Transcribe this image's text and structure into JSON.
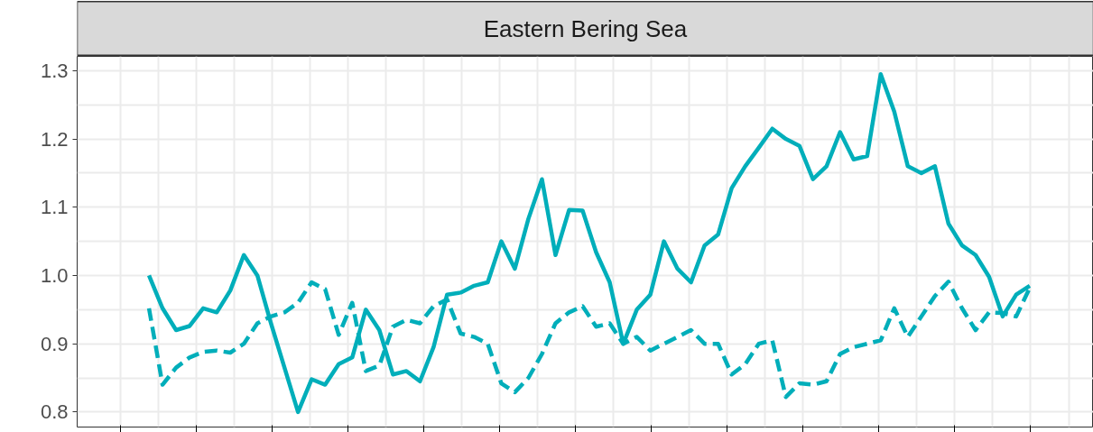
{
  "chart_data": {
    "type": "line",
    "title": "Eastern Bering Sea",
    "categories": [
      null,
      null,
      null,
      null,
      null,
      null,
      null,
      null,
      null,
      null,
      null,
      null,
      null,
      null,
      null,
      null,
      null,
      null,
      null,
      null,
      null,
      null,
      null,
      null,
      null,
      null,
      null,
      null,
      null,
      null,
      null,
      null,
      null,
      null,
      null,
      null,
      null,
      null,
      null,
      null,
      null,
      null,
      null,
      null,
      null,
      null,
      null,
      null,
      null,
      null,
      null,
      null,
      null,
      null,
      null,
      null,
      null,
      null,
      null,
      null,
      null,
      null,
      null,
      null,
      null,
      null
    ],
    "series": [
      {
        "color": "#00aeba",
        "line_style": "solid",
        "values": [
          1.0,
          0.952,
          0.92,
          0.926,
          0.952,
          0.946,
          0.978,
          1.03,
          1.0,
          0.93,
          0.865,
          0.8,
          0.848,
          0.84,
          0.87,
          0.88,
          0.95,
          0.92,
          0.855,
          0.86,
          0.845,
          0.895,
          0.972,
          0.975,
          0.985,
          0.99,
          1.05,
          1.01,
          1.083,
          1.141,
          1.03,
          1.096,
          1.095,
          1.034,
          0.99,
          0.9,
          0.95,
          0.972,
          1.05,
          1.01,
          0.99,
          1.044,
          1.06,
          1.128,
          1.16,
          1.187,
          1.215,
          1.2,
          1.19,
          1.141,
          1.16,
          1.21,
          1.17,
          1.175,
          1.295,
          1.24,
          1.16,
          1.15,
          1.16,
          1.076,
          1.044,
          1.03,
          0.998,
          0.94,
          0.972,
          0.985
        ]
      },
      {
        "color": "#00aeba",
        "line_style": "dashed",
        "values": [
          0.952,
          0.84,
          0.865,
          0.88,
          0.888,
          0.89,
          0.887,
          0.9,
          0.93,
          0.94,
          0.946,
          0.96,
          0.99,
          0.98,
          0.913,
          0.96,
          0.86,
          0.868,
          0.925,
          0.935,
          0.93,
          0.955,
          0.965,
          0.915,
          0.91,
          0.9,
          0.842,
          0.829,
          0.85,
          0.885,
          0.93,
          0.946,
          0.955,
          0.925,
          0.93,
          0.9,
          0.91,
          0.89,
          0.9,
          0.91,
          0.92,
          0.9,
          0.9,
          0.855,
          0.87,
          0.9,
          0.905,
          0.822,
          0.842,
          0.84,
          0.845,
          0.885,
          0.895,
          0.9,
          0.905,
          0.952,
          0.91,
          0.94,
          0.97,
          0.991,
          0.952,
          0.92,
          0.946,
          0.945,
          0.94,
          0.982
        ]
      }
    ],
    "ylim": [
      0.778,
      1.321
    ],
    "yticks": [
      {
        "value": 0.8,
        "label": "0.8"
      },
      {
        "value": 0.9,
        "label": "0.9"
      },
      {
        "value": 1.0,
        "label": "1.0"
      },
      {
        "value": 1.1,
        "label": "1.1"
      },
      {
        "value": 1.2,
        "label": "1.2"
      },
      {
        "value": 1.3,
        "label": "1.3"
      }
    ],
    "grid": true,
    "tick_labels": "y"
  }
}
